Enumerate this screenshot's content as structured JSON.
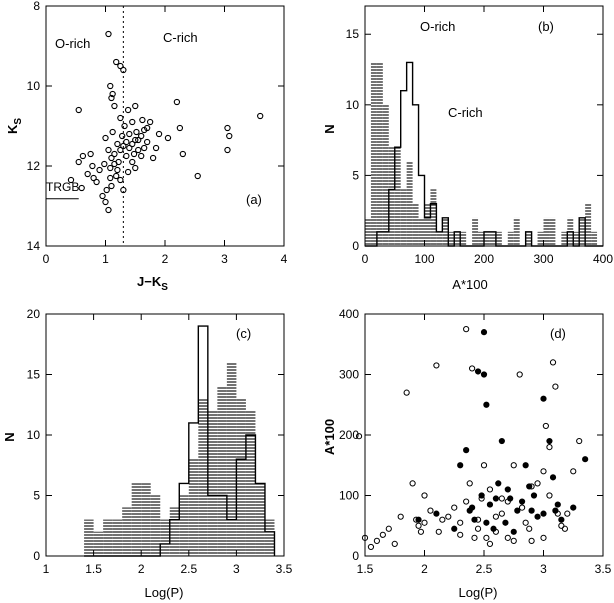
{
  "chart_data": [
    {
      "id": "a",
      "type": "scatter",
      "panel_label": "(a)",
      "xlabel": "J−K",
      "xlabel_sub": "S",
      "ylabel": "K",
      "ylabel_sub": "S",
      "xlim": [
        0,
        4
      ],
      "ylim": [
        14,
        8
      ],
      "xticks": [
        "0",
        "1",
        "2",
        "3",
        "4"
      ],
      "yticks": [
        "8",
        "10",
        "12",
        "14"
      ],
      "annotations": {
        "left": "O-rich",
        "right": "C-rich",
        "trgb": "TRGB"
      },
      "divider_x": 1.3,
      "trgb_y": 12.82,
      "points": [
        [
          0.55,
          10.6
        ],
        [
          0.55,
          11.9
        ],
        [
          0.78,
          12.0
        ],
        [
          1.05,
          8.7
        ],
        [
          1.08,
          10.0
        ],
        [
          1.1,
          10.3
        ],
        [
          1.12,
          10.2
        ],
        [
          1.15,
          10.5
        ],
        [
          1.18,
          9.4
        ],
        [
          1.25,
          9.5
        ],
        [
          1.3,
          9.6
        ],
        [
          1.25,
          10.8
        ],
        [
          1.32,
          11.0
        ],
        [
          1.38,
          10.6
        ],
        [
          1.45,
          10.9
        ],
        [
          1.5,
          10.5
        ],
        [
          1.62,
          10.85
        ],
        [
          1.4,
          11.2
        ],
        [
          1.5,
          11.35
        ],
        [
          1.6,
          11.25
        ],
        [
          1.65,
          11.1
        ],
        [
          1.7,
          11.4
        ],
        [
          1.75,
          10.9
        ],
        [
          2.05,
          11.3
        ],
        [
          2.2,
          10.4
        ],
        [
          2.25,
          11.05
        ],
        [
          1.9,
          11.2
        ],
        [
          2.3,
          11.7
        ],
        [
          2.55,
          12.25
        ],
        [
          3.05,
          11.05
        ],
        [
          3.08,
          11.25
        ],
        [
          3.05,
          11.6
        ],
        [
          3.6,
          10.75
        ],
        [
          1.0,
          11.3
        ],
        [
          1.05,
          11.6
        ],
        [
          1.1,
          11.8
        ],
        [
          1.15,
          11.95
        ],
        [
          1.2,
          12.1
        ],
        [
          1.08,
          12.3
        ],
        [
          1.02,
          12.6
        ],
        [
          0.95,
          12.75
        ],
        [
          1.0,
          12.9
        ],
        [
          1.05,
          13.1
        ],
        [
          0.85,
          12.4
        ],
        [
          0.7,
          12.2
        ],
        [
          0.6,
          12.55
        ],
        [
          0.42,
          12.35
        ],
        [
          1.3,
          11.5
        ],
        [
          1.35,
          11.75
        ],
        [
          1.45,
          11.9
        ],
        [
          1.5,
          12.05
        ],
        [
          1.25,
          12.35
        ],
        [
          1.3,
          12.6
        ],
        [
          1.55,
          11.6
        ],
        [
          1.8,
          11.8
        ],
        [
          1.2,
          11.45
        ],
        [
          1.12,
          11.15
        ],
        [
          0.98,
          11.95
        ],
        [
          0.9,
          12.1
        ],
        [
          0.8,
          12.3
        ],
        [
          1.38,
          12.15
        ],
        [
          1.6,
          11.75
        ],
        [
          1.4,
          11.55
        ],
        [
          1.45,
          11.45
        ],
        [
          1.52,
          11.15
        ],
        [
          1.7,
          11.05
        ],
        [
          1.85,
          11.55
        ],
        [
          1.28,
          11.25
        ],
        [
          1.15,
          11.7
        ],
        [
          1.22,
          11.9
        ],
        [
          1.35,
          11.4
        ],
        [
          1.1,
          12.5
        ],
        [
          0.75,
          11.7
        ],
        [
          0.62,
          11.75
        ],
        [
          1.55,
          11.35
        ],
        [
          1.65,
          11.55
        ],
        [
          1.48,
          11.7
        ],
        [
          1.08,
          12.05
        ],
        [
          1.18,
          12.25
        ],
        [
          1.25,
          11.6
        ]
      ]
    },
    {
      "id": "b",
      "type": "histogram",
      "panel_label": "(b)",
      "xlabel": "A*100",
      "ylabel": "N",
      "xlim": [
        0,
        400
      ],
      "ylim": [
        0,
        17
      ],
      "xticks": [
        "0",
        "100",
        "200",
        "300",
        "400"
      ],
      "yticks": [
        "0",
        "5",
        "10",
        "15"
      ],
      "annotations": {
        "top": "O-rich",
        "mid": "C-rich"
      },
      "bin_start": 0,
      "bin_width": 10,
      "series": [
        {
          "name": "O-rich",
          "style": "hatched",
          "values": [
            2,
            13,
            13,
            10,
            7,
            7,
            4,
            6,
            3,
            2,
            3,
            4,
            1,
            2,
            1,
            1,
            1,
            0,
            2,
            1,
            1,
            1,
            1,
            0,
            1,
            2,
            0,
            1,
            0,
            1,
            2,
            2,
            0,
            1,
            2,
            1,
            2,
            3,
            1,
            0
          ]
        },
        {
          "name": "C-rich",
          "style": "open",
          "values": [
            0,
            0,
            1,
            1,
            4,
            7,
            11,
            13,
            10,
            5,
            2,
            3,
            1,
            2,
            0,
            1,
            0,
            0,
            0,
            0,
            1,
            1,
            0,
            0,
            0,
            0,
            0,
            1,
            0,
            0,
            0,
            0,
            0,
            0,
            1,
            0,
            2,
            0,
            0,
            0
          ]
        }
      ]
    },
    {
      "id": "c",
      "type": "histogram",
      "panel_label": "(c)",
      "xlabel": "Log(P)",
      "ylabel": "N",
      "xlim": [
        1,
        3.5
      ],
      "ylim": [
        0,
        20
      ],
      "xticks": [
        "1",
        "1.5",
        "2",
        "2.5",
        "3",
        "3.5"
      ],
      "yticks": [
        "0",
        "5",
        "10",
        "15",
        "20"
      ],
      "bin_start": 1.4,
      "bin_width": 0.1,
      "series": [
        {
          "name": "O-rich",
          "style": "hatched",
          "values": [
            3,
            2,
            3,
            3,
            4,
            6,
            6,
            5,
            3,
            4,
            5,
            8,
            13,
            12,
            14,
            16,
            13,
            12,
            6,
            3
          ]
        },
        {
          "name": "C-rich",
          "style": "open",
          "values": [
            0,
            0,
            0,
            0,
            0,
            0,
            0,
            0,
            1,
            3,
            6,
            11,
            19,
            5,
            5,
            3,
            8,
            10,
            6,
            2
          ]
        }
      ]
    },
    {
      "id": "d",
      "type": "scatter",
      "panel_label": "(d)",
      "xlabel": "Log(P)",
      "ylabel": "A*100",
      "xlim": [
        1.5,
        3.5
      ],
      "ylim": [
        0,
        400
      ],
      "xticks": [
        "1.5",
        "2",
        "2.5",
        "3",
        "3.5"
      ],
      "yticks": [
        "0",
        "100",
        "200",
        "300",
        "400"
      ],
      "series": [
        {
          "name": "O-rich",
          "marker": "open",
          "points": [
            [
              1.45,
              198
            ],
            [
              1.5,
              30
            ],
            [
              1.55,
              15
            ],
            [
              1.6,
              25
            ],
            [
              1.65,
              35
            ],
            [
              1.7,
              45
            ],
            [
              1.75,
              20
            ],
            [
              1.8,
              65
            ],
            [
              1.85,
              270
            ],
            [
              1.9,
              120
            ],
            [
              1.93,
              60
            ],
            [
              1.95,
              50
            ],
            [
              2.0,
              55
            ],
            [
              2.0,
              100
            ],
            [
              2.05,
              75
            ],
            [
              2.1,
              315
            ],
            [
              2.12,
              40
            ],
            [
              2.2,
              65
            ],
            [
              2.25,
              80
            ],
            [
              2.3,
              55
            ],
            [
              2.35,
              375
            ],
            [
              2.38,
              120
            ],
            [
              2.4,
              310
            ],
            [
              2.42,
              30
            ],
            [
              2.45,
              60
            ],
            [
              2.48,
              95
            ],
            [
              2.5,
              150
            ],
            [
              2.55,
              20
            ],
            [
              2.6,
              40
            ],
            [
              2.65,
              95
            ],
            [
              2.7,
              30
            ],
            [
              2.75,
              25
            ],
            [
              2.8,
              300
            ],
            [
              2.82,
              80
            ],
            [
              2.85,
              55
            ],
            [
              2.9,
              115
            ],
            [
              2.95,
              120
            ],
            [
              3.0,
              140
            ],
            [
              3.02,
              215
            ],
            [
              3.05,
              100
            ],
            [
              3.08,
              320
            ],
            [
              3.1,
              280
            ],
            [
              3.12,
              70
            ],
            [
              3.15,
              50
            ],
            [
              3.2,
              70
            ],
            [
              3.25,
              140
            ],
            [
              3.3,
              190
            ],
            [
              2.3,
              35
            ],
            [
              2.6,
              65
            ],
            [
              2.7,
              90
            ],
            [
              2.9,
              25
            ],
            [
              3.0,
              30
            ],
            [
              2.55,
              110
            ],
            [
              2.45,
              45
            ],
            [
              2.75,
              150
            ],
            [
              2.65,
              70
            ],
            [
              3.18,
              45
            ],
            [
              2.15,
              60
            ],
            [
              1.97,
              40
            ],
            [
              2.35,
              90
            ],
            [
              2.52,
              30
            ],
            [
              2.88,
              45
            ],
            [
              3.05,
              180
            ]
          ]
        },
        {
          "name": "C-rich",
          "marker": "filled",
          "points": [
            [
              1.95,
              60
            ],
            [
              2.1,
              70
            ],
            [
              2.25,
              45
            ],
            [
              2.3,
              150
            ],
            [
              2.35,
              175
            ],
            [
              2.4,
              80
            ],
            [
              2.45,
              305
            ],
            [
              2.5,
              300
            ],
            [
              2.5,
              370
            ],
            [
              2.52,
              250
            ],
            [
              2.55,
              85
            ],
            [
              2.6,
              95
            ],
            [
              2.65,
              190
            ],
            [
              2.7,
              110
            ],
            [
              2.78,
              75
            ],
            [
              2.82,
              90
            ],
            [
              2.88,
              115
            ],
            [
              2.92,
              100
            ],
            [
              3.0,
              260
            ],
            [
              3.05,
              190
            ],
            [
              3.1,
              75
            ],
            [
              3.15,
              60
            ],
            [
              3.25,
              80
            ],
            [
              3.35,
              160
            ],
            [
              2.42,
              60
            ],
            [
              2.48,
              100
            ],
            [
              2.58,
              45
            ],
            [
              2.62,
              120
            ],
            [
              2.68,
              55
            ],
            [
              2.75,
              40
            ],
            [
              2.85,
              150
            ],
            [
              2.95,
              65
            ],
            [
              3.0,
              70
            ],
            [
              3.08,
              130
            ],
            [
              2.38,
              75
            ],
            [
              2.52,
              55
            ],
            [
              2.72,
              95
            ],
            [
              2.9,
              75
            ],
            [
              3.12,
              85
            ]
          ]
        }
      ]
    }
  ]
}
